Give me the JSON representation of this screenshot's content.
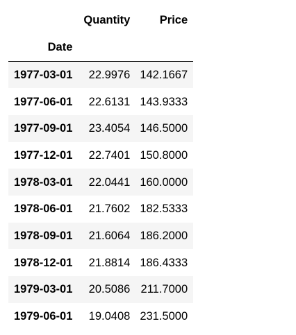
{
  "table": {
    "columns": [
      "Quantity",
      "Price"
    ],
    "index_name": "Date",
    "rows": [
      {
        "date": "1977-03-01",
        "quantity": "22.9976",
        "price": "142.1667"
      },
      {
        "date": "1977-06-01",
        "quantity": "22.6131",
        "price": "143.9333"
      },
      {
        "date": "1977-09-01",
        "quantity": "23.4054",
        "price": "146.5000"
      },
      {
        "date": "1977-12-01",
        "quantity": "22.7401",
        "price": "150.8000"
      },
      {
        "date": "1978-03-01",
        "quantity": "22.0441",
        "price": "160.0000"
      },
      {
        "date": "1978-06-01",
        "quantity": "21.7602",
        "price": "182.5333"
      },
      {
        "date": "1978-09-01",
        "quantity": "21.6064",
        "price": "186.2000"
      },
      {
        "date": "1978-12-01",
        "quantity": "21.8814",
        "price": "186.4333"
      },
      {
        "date": "1979-03-01",
        "quantity": "20.5086",
        "price": "211.7000"
      },
      {
        "date": "1979-06-01",
        "quantity": "19.0408",
        "price": "231.5000"
      }
    ]
  }
}
